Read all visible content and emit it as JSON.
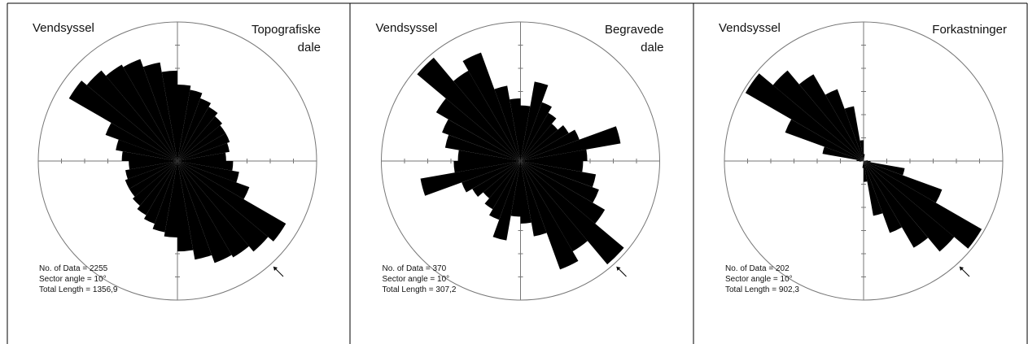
{
  "chart_data": [
    {
      "type": "rose",
      "region": "Vendsyssel",
      "title": "Topografiske dale",
      "annotations": [
        "No. of Data = 2255",
        "Sector angle = 10°",
        "Total Length = 1356,9"
      ],
      "values": [
        55,
        52,
        48,
        45,
        42,
        40,
        40,
        38,
        35,
        40,
        45,
        55,
        90,
        85,
        80,
        78,
        72,
        65
      ],
      "rlim": [
        0,
        100
      ],
      "color": "#000000"
    },
    {
      "type": "rose",
      "region": "Vendsyssel",
      "title": "Begravede dale",
      "annotations": [
        "No. of Data = 370",
        "Sector angle = 10°",
        "Total Length = 307,2"
      ],
      "values": [
        40,
        58,
        45,
        40,
        35,
        40,
        45,
        73,
        48,
        45,
        55,
        60,
        70,
        97,
        75,
        83,
        55,
        45
      ],
      "rlim": [
        0,
        100
      ],
      "color": "#000000"
    },
    {
      "type": "rose",
      "region": "Vendsyssel",
      "title": "Forkastninger",
      "annotations": [
        "No. of Data = 202",
        "Sector angle = 10°",
        "Total Length = 902,3"
      ],
      "values": [
        5,
        0,
        0,
        0,
        0,
        0,
        0,
        0,
        3,
        5,
        30,
        60,
        98,
        85,
        72,
        55,
        40,
        15
      ],
      "rlim": [
        0,
        100
      ],
      "color": "#000000"
    }
  ]
}
